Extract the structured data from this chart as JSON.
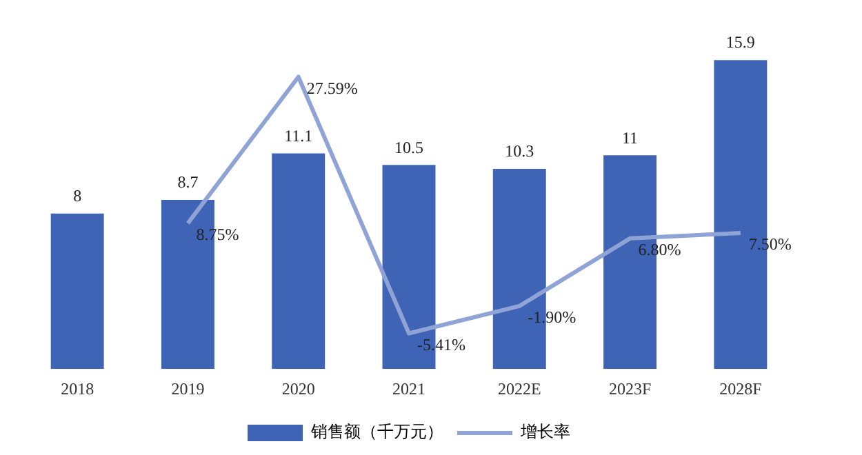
{
  "chart_data": {
    "type": "bar",
    "categories": [
      "2018",
      "2019",
      "2020",
      "2021",
      "2022E",
      "2023F",
      "2028F"
    ],
    "series": [
      {
        "name": "销售额（千万元）",
        "color": "#3f63b5",
        "values": [
          8,
          8.7,
          11.1,
          10.5,
          10.3,
          11,
          15.9
        ],
        "value_labels": [
          "8",
          "8.7",
          "11.1",
          "10.5",
          "10.3",
          "11",
          "15.9"
        ]
      },
      {
        "name": "增长率",
        "type": "line",
        "axis": "y2",
        "color": "#8fa3d6",
        "values": [
          null,
          8.75,
          27.59,
          -5.41,
          -1.9,
          6.8,
          7.5
        ],
        "value_labels": [
          null,
          "8.75%",
          "27.59%",
          "-5.41%",
          "-1.90%",
          "6.80%",
          "7.50%"
        ]
      }
    ],
    "tick_labels": "x",
    "grid": false,
    "legend": "bottom",
    "marker": "none",
    "line_style": "solid"
  }
}
